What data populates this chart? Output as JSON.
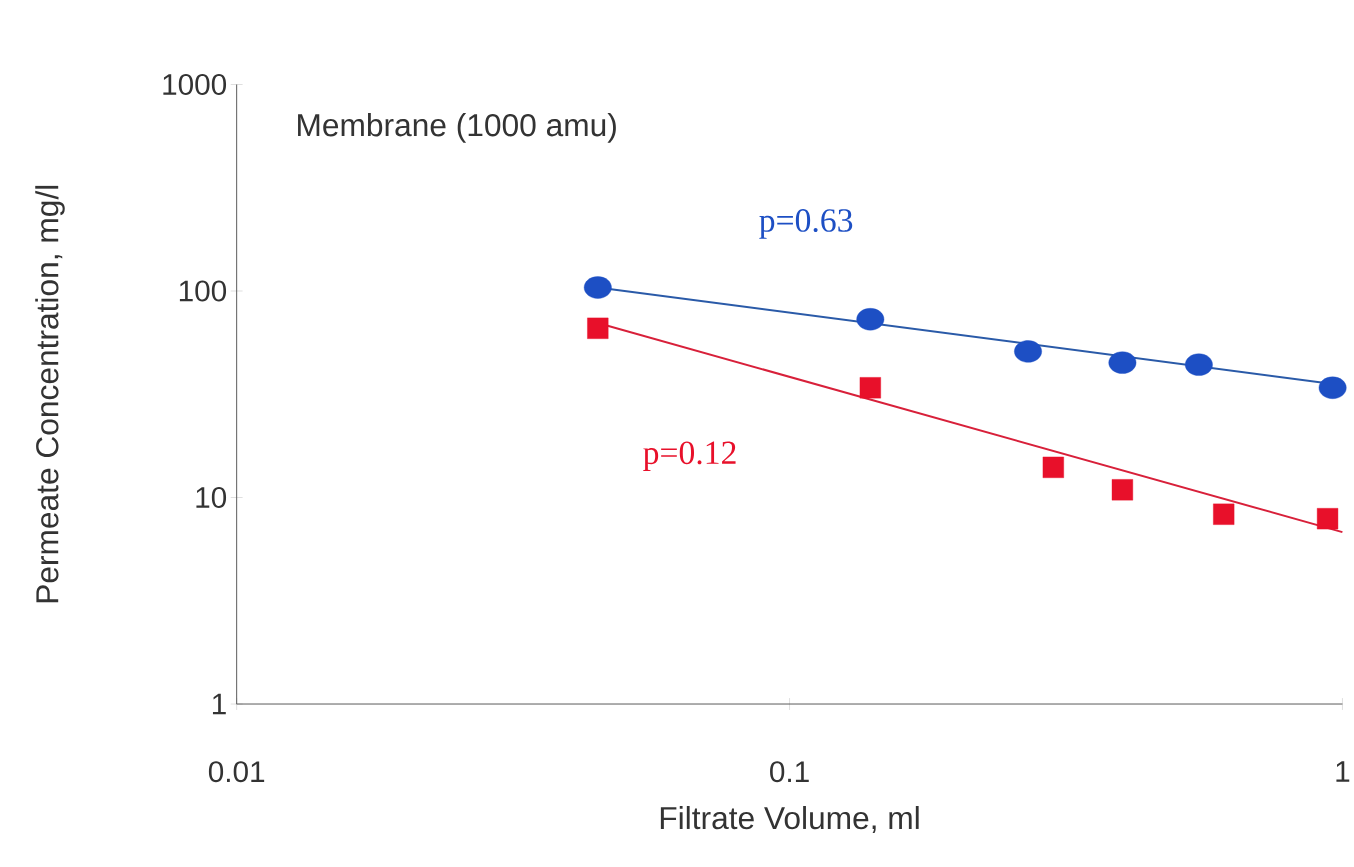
{
  "chart_data": {
    "type": "scatter",
    "title": "Membrane (1000 amu)",
    "xlabel": "Filtrate Volume, ml",
    "ylabel": "Permeate Concentration, mg/l",
    "log": "xy",
    "xlim": [
      0.01,
      1
    ],
    "ylim": [
      1,
      1000
    ],
    "xticks": [
      0.01,
      0.1,
      1
    ],
    "yticks": [
      1,
      10,
      100,
      1000
    ],
    "grid": false,
    "series": [
      {
        "marker": "circle",
        "color": "#1d4fc4",
        "x": [
          0.045,
          0.14,
          0.27,
          0.4,
          0.55,
          0.96
        ],
        "values": [
          104,
          73,
          51,
          45,
          44,
          34
        ]
      },
      {
        "marker": "square",
        "color": "#e8102a",
        "x": [
          0.045,
          0.14,
          0.3,
          0.4,
          0.61,
          0.94
        ],
        "values": [
          66,
          34,
          14,
          10.9,
          8.3,
          7.9
        ]
      },
      {
        "type": "line",
        "marker": "none",
        "color": "#2a5aa8",
        "x": [
          0.045,
          1
        ],
        "values": [
          104,
          35
        ]
      },
      {
        "type": "line",
        "marker": "none",
        "color": "#d8203a",
        "x": [
          0.045,
          1
        ],
        "values": [
          70,
          6.8
        ]
      }
    ],
    "annotations": [
      "p=0.63",
      "p=0.12"
    ]
  }
}
